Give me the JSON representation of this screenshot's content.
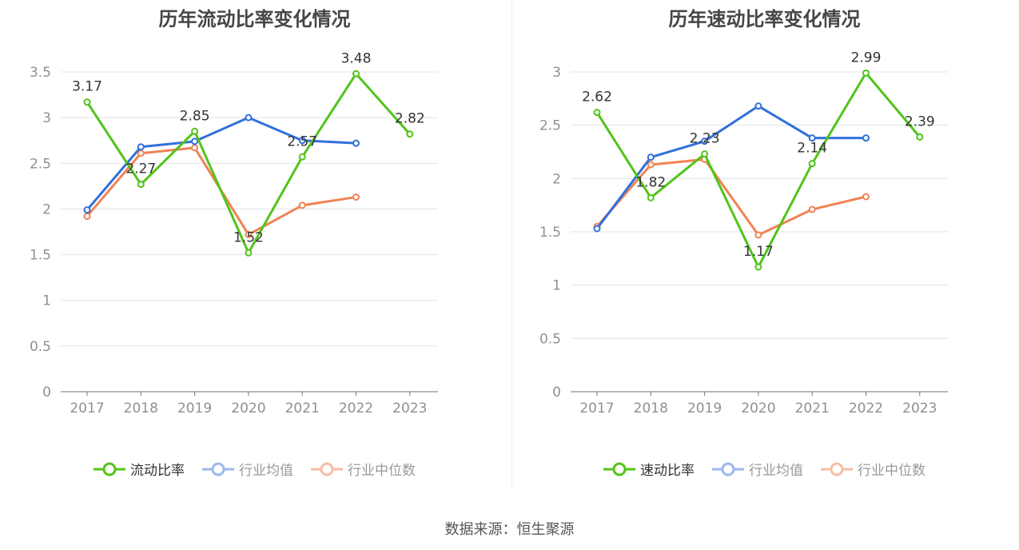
{
  "colors": {
    "main": "#52c41a",
    "avg": "#3270db",
    "median": "#f08454",
    "grid": "#e0e3ee",
    "axis": "#6e7079",
    "tick": "#909090",
    "label": "#333333"
  },
  "footer": {
    "source": "数据来源：恒生聚源"
  },
  "legend": {
    "avg_label": "行业均值",
    "median_label": "行业中位数"
  },
  "chart_data": [
    {
      "type": "line",
      "title": "历年流动比率变化情况",
      "categories": [
        "2017",
        "2018",
        "2019",
        "2020",
        "2021",
        "2022",
        "2023"
      ],
      "ylim": [
        0,
        3.5
      ],
      "yticks": [
        0,
        0.5,
        1,
        1.5,
        2,
        2.5,
        3,
        3.5
      ],
      "ytick_labels": [
        "0",
        "0.5",
        "1",
        "1.5",
        "2",
        "2.5",
        "3",
        "3.5"
      ],
      "legend_position": "bottom",
      "series": [
        {
          "name": "流动比率",
          "values": [
            3.17,
            2.27,
            2.85,
            1.52,
            2.57,
            3.48,
            2.82
          ],
          "data_labels": [
            "3.17",
            "2.27",
            "2.85",
            "1.52",
            "2.57",
            "3.48",
            "2.82"
          ]
        },
        {
          "name": "行业均值",
          "values": [
            1.99,
            2.68,
            2.74,
            3.0,
            2.75,
            2.72,
            null
          ]
        },
        {
          "name": "行业中位数",
          "values": [
            1.92,
            2.61,
            2.67,
            1.72,
            2.04,
            2.13,
            null
          ]
        }
      ]
    },
    {
      "type": "line",
      "title": "历年速动比率变化情况",
      "categories": [
        "2017",
        "2018",
        "2019",
        "2020",
        "2021",
        "2022",
        "2023"
      ],
      "ylim": [
        0,
        3
      ],
      "yticks": [
        0,
        0.5,
        1,
        1.5,
        2,
        2.5,
        3
      ],
      "ytick_labels": [
        "0",
        "0.5",
        "1",
        "1.5",
        "2",
        "2.5",
        "3"
      ],
      "legend_position": "bottom",
      "series": [
        {
          "name": "速动比率",
          "values": [
            2.62,
            1.82,
            2.23,
            1.17,
            2.14,
            2.99,
            2.39
          ],
          "data_labels": [
            "2.62",
            "1.82",
            "2.23",
            "1.17",
            "2.14",
            "2.99",
            "2.39"
          ]
        },
        {
          "name": "行业均值",
          "values": [
            1.53,
            2.2,
            2.35,
            2.68,
            2.38,
            2.38,
            null
          ]
        },
        {
          "name": "行业中位数",
          "values": [
            1.55,
            2.13,
            2.18,
            1.47,
            1.71,
            1.83,
            null
          ]
        }
      ]
    }
  ]
}
